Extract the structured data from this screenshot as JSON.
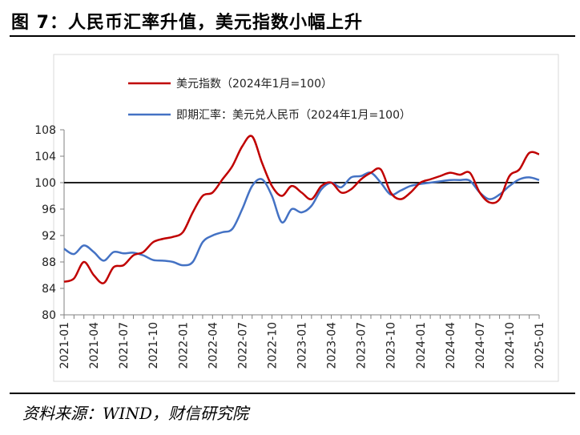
{
  "figure": {
    "title": "图 7：人民币汇率升值，美元指数小幅上升",
    "source": "资料来源：WIND，财信研究院"
  },
  "chart_data": {
    "type": "line",
    "x": [
      "2021-01",
      "2021-02",
      "2021-03",
      "2021-04",
      "2021-05",
      "2021-06",
      "2021-07",
      "2021-08",
      "2021-09",
      "2021-10",
      "2021-11",
      "2021-12",
      "2022-01",
      "2022-02",
      "2022-03",
      "2022-04",
      "2022-05",
      "2022-06",
      "2022-07",
      "2022-08",
      "2022-09",
      "2022-10",
      "2022-11",
      "2022-12",
      "2023-01",
      "2023-02",
      "2023-03",
      "2023-04",
      "2023-05",
      "2023-06",
      "2023-07",
      "2023-08",
      "2023-09",
      "2023-10",
      "2023-11",
      "2023-12",
      "2024-01",
      "2024-02",
      "2024-03",
      "2024-04",
      "2024-05",
      "2024-06",
      "2024-07",
      "2024-08",
      "2024-09",
      "2024-10",
      "2024-11",
      "2024-12",
      "2025-01"
    ],
    "x_tick_labels": [
      "2021-01",
      "2021-04",
      "2021-07",
      "2021-10",
      "2022-01",
      "2022-04",
      "2022-07",
      "2022-10",
      "2023-01",
      "2023-04",
      "2023-07",
      "2023-10",
      "2024-01",
      "2024-04",
      "2024-07",
      "2024-10",
      "2025-01"
    ],
    "ylim": [
      80,
      108
    ],
    "y_ticks": [
      80,
      84,
      88,
      92,
      96,
      100,
      104,
      108
    ],
    "grid": false,
    "reference_line": 100,
    "legend_position": "top-left",
    "series": [
      {
        "name": "美元指数（2024年1月=100）",
        "color": "#c00000",
        "values": [
          85.0,
          85.5,
          88.0,
          86.0,
          84.8,
          87.2,
          87.5,
          89.0,
          89.5,
          91.0,
          91.5,
          91.8,
          92.5,
          95.5,
          98.0,
          98.5,
          100.5,
          102.5,
          105.5,
          107.0,
          103.0,
          99.5,
          98.0,
          99.5,
          98.5,
          97.5,
          99.5,
          100.0,
          98.5,
          99.0,
          100.5,
          101.5,
          102.0,
          98.5,
          97.5,
          98.5,
          100.0,
          100.5,
          101.0,
          101.5,
          101.2,
          101.5,
          98.5,
          97.0,
          97.5,
          101.0,
          102.0,
          104.5,
          104.3
        ]
      },
      {
        "name": "即期汇率：美元兑人民币（2024年1月=100）",
        "color": "#4472c4",
        "values": [
          90.0,
          89.2,
          90.5,
          89.5,
          88.2,
          89.5,
          89.3,
          89.4,
          89.0,
          88.3,
          88.2,
          88.0,
          87.5,
          88.0,
          91.0,
          92.0,
          92.5,
          93.0,
          96.0,
          99.5,
          100.5,
          98.0,
          94.0,
          96.0,
          95.5,
          96.5,
          99.0,
          100.0,
          99.3,
          100.8,
          101.0,
          101.5,
          100.0,
          98.2,
          98.8,
          99.5,
          99.8,
          100.0,
          100.2,
          100.4,
          100.4,
          100.3,
          98.5,
          97.5,
          98.2,
          99.5,
          100.5,
          100.8,
          100.4
        ]
      }
    ]
  }
}
